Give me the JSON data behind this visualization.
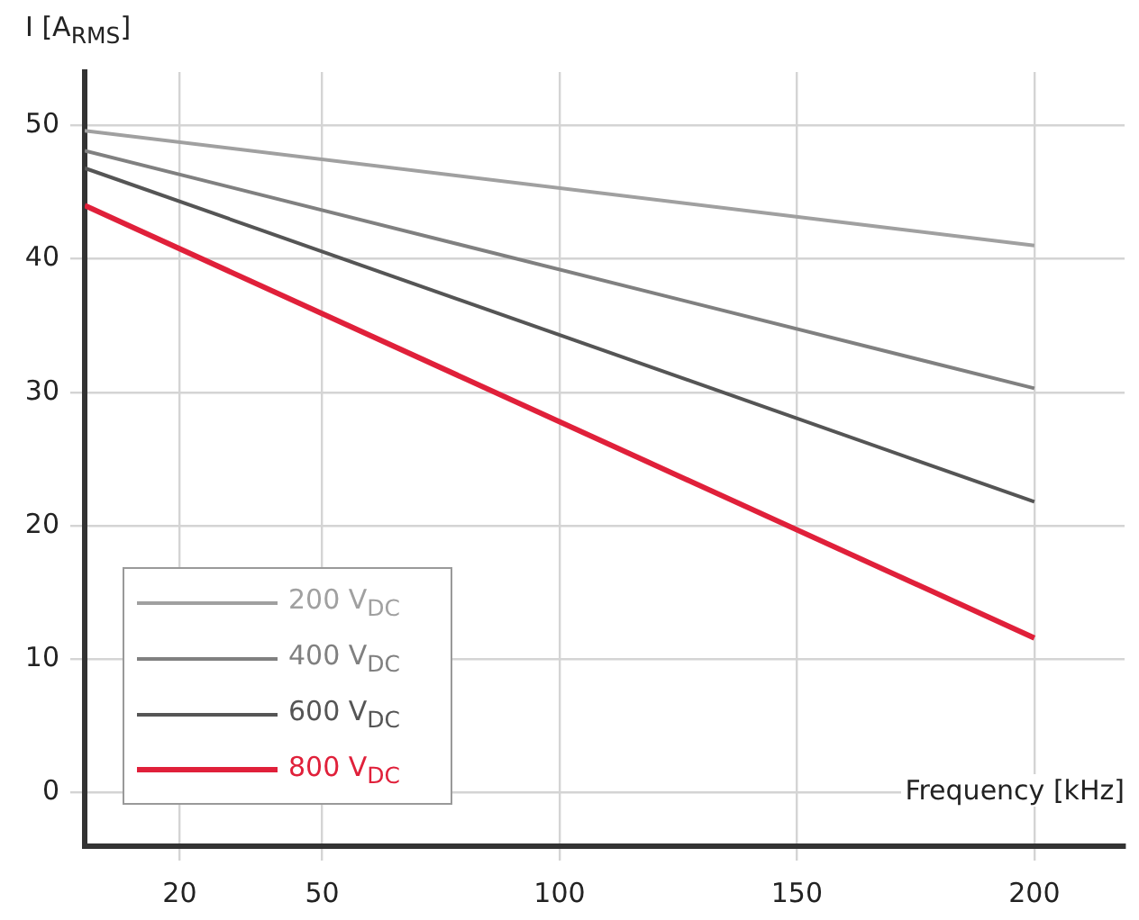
{
  "chart_data": {
    "type": "line",
    "xlabel": "Frequency [kHz]",
    "ylabel": "I [A$_{RMS}$]",
    "x": [
      0,
      200
    ],
    "xlim": [
      0,
      219
    ],
    "xticks": [
      20,
      50,
      100,
      150,
      200
    ],
    "ylim": [
      -4,
      54
    ],
    "yticks": [
      0,
      10,
      20,
      30,
      40,
      50
    ],
    "grid": true,
    "legend": "bottom left",
    "marker": "none",
    "line_style": "solid",
    "series": [
      {
        "name": "200 V$_{DC}$",
        "color": "#a0a0a0",
        "values": [
          49.6,
          41.0
        ]
      },
      {
        "name": "400 V$_{DC}$",
        "color": "#808080",
        "values": [
          48.1,
          30.3
        ]
      },
      {
        "name": "600 V$_{DC}$",
        "color": "#555555",
        "values": [
          46.8,
          21.8
        ]
      },
      {
        "name": "800 V$_{DC}$",
        "color": "#e0203a",
        "values": [
          44.0,
          11.6
        ]
      }
    ]
  }
}
